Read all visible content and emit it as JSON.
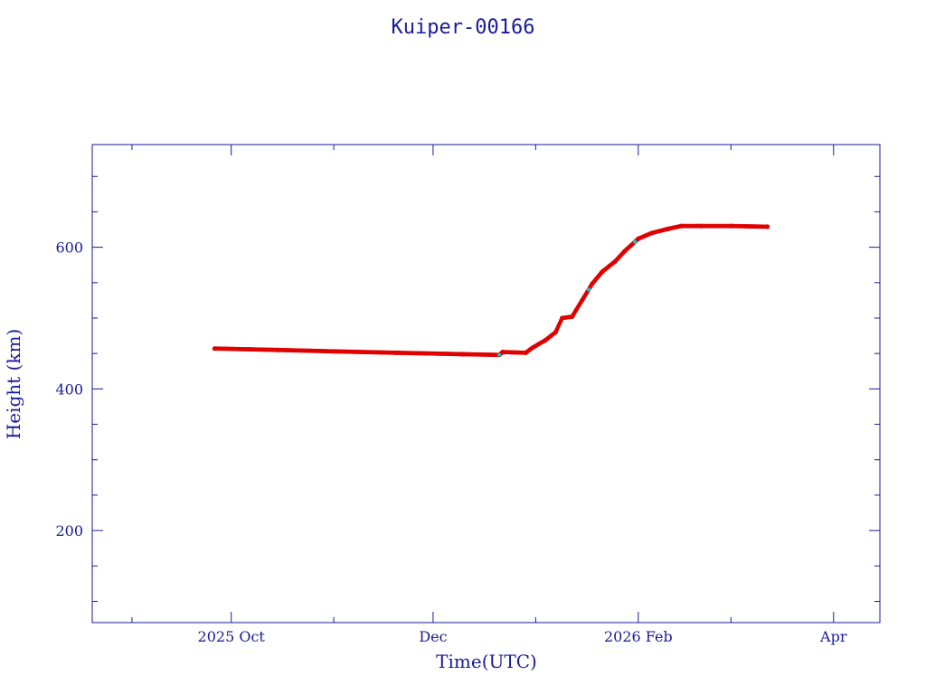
{
  "chart_data": {
    "type": "scatter",
    "title": "Kuiper-00166",
    "xlabel": "Time(UTC)",
    "ylabel": "Height (km)",
    "xlim": [
      "2025-08-20",
      "2026-04-15"
    ],
    "ylim": [
      70,
      745
    ],
    "x_ticks": [
      {
        "date": "2025-10-01",
        "label": "2025 Oct"
      },
      {
        "date": "2025-12-01",
        "label": "Dec"
      },
      {
        "date": "2026-02-01",
        "label": "2026 Feb"
      },
      {
        "date": "2026-04-01",
        "label": "Apr"
      }
    ],
    "y_ticks": [
      {
        "value": 200,
        "label": "200"
      },
      {
        "value": 400,
        "label": "400"
      },
      {
        "value": 600,
        "label": "600"
      }
    ],
    "grid": false,
    "colors": {
      "axis": "#1a1a99",
      "points": "#e00000",
      "highlight": "#00d0e0"
    },
    "series": [
      {
        "x": [
          "2025-09-26",
          "2025-10-15",
          "2025-11-01",
          "2025-11-20",
          "2025-12-10",
          "2025-12-21",
          "2025-12-22",
          "2025-12-29",
          "2025-12-31",
          "2026-01-04",
          "2026-01-07",
          "2026-01-09",
          "2026-01-12",
          "2026-01-15",
          "2026-01-18",
          "2026-01-21",
          "2026-01-25",
          "2026-01-28",
          "2026-02-01",
          "2026-02-05",
          "2026-02-10",
          "2026-02-14",
          "2026-02-20",
          "2026-03-01",
          "2026-03-12"
        ],
        "y": [
          457,
          455,
          453,
          451,
          449,
          448,
          452,
          451,
          458,
          469,
          480,
          500,
          502,
          525,
          548,
          565,
          580,
          595,
          612,
          620,
          626,
          630,
          630,
          630,
          629
        ]
      }
    ]
  }
}
